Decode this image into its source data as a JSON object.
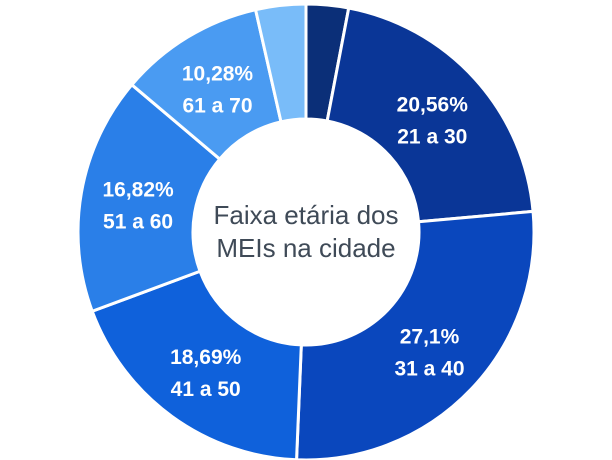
{
  "chart_data": {
    "type": "pie",
    "donut": true,
    "center_text": [
      "Faixa etária dos",
      "MEIs na cidade"
    ],
    "slices": [
      {
        "category": "",
        "percent_label": "",
        "value": 3.0,
        "color": "#0b2f78"
      },
      {
        "category": "21 a 30",
        "percent_label": "20,56%",
        "value": 20.56,
        "color": "#0a3697"
      },
      {
        "category": "31 a 40",
        "percent_label": "27,1%",
        "value": 27.1,
        "color": "#0a47bd"
      },
      {
        "category": "41 a 50",
        "percent_label": "18,69%",
        "value": 18.69,
        "color": "#0f61db"
      },
      {
        "category": "51 a 60",
        "percent_label": "16,82%",
        "value": 16.82,
        "color": "#2a7fe8"
      },
      {
        "category": "61 a 70",
        "percent_label": "10,28%",
        "value": 10.28,
        "color": "#4a9bf2"
      },
      {
        "category": "",
        "percent_label": "",
        "value": 3.55,
        "color": "#79bcf9"
      }
    ]
  }
}
